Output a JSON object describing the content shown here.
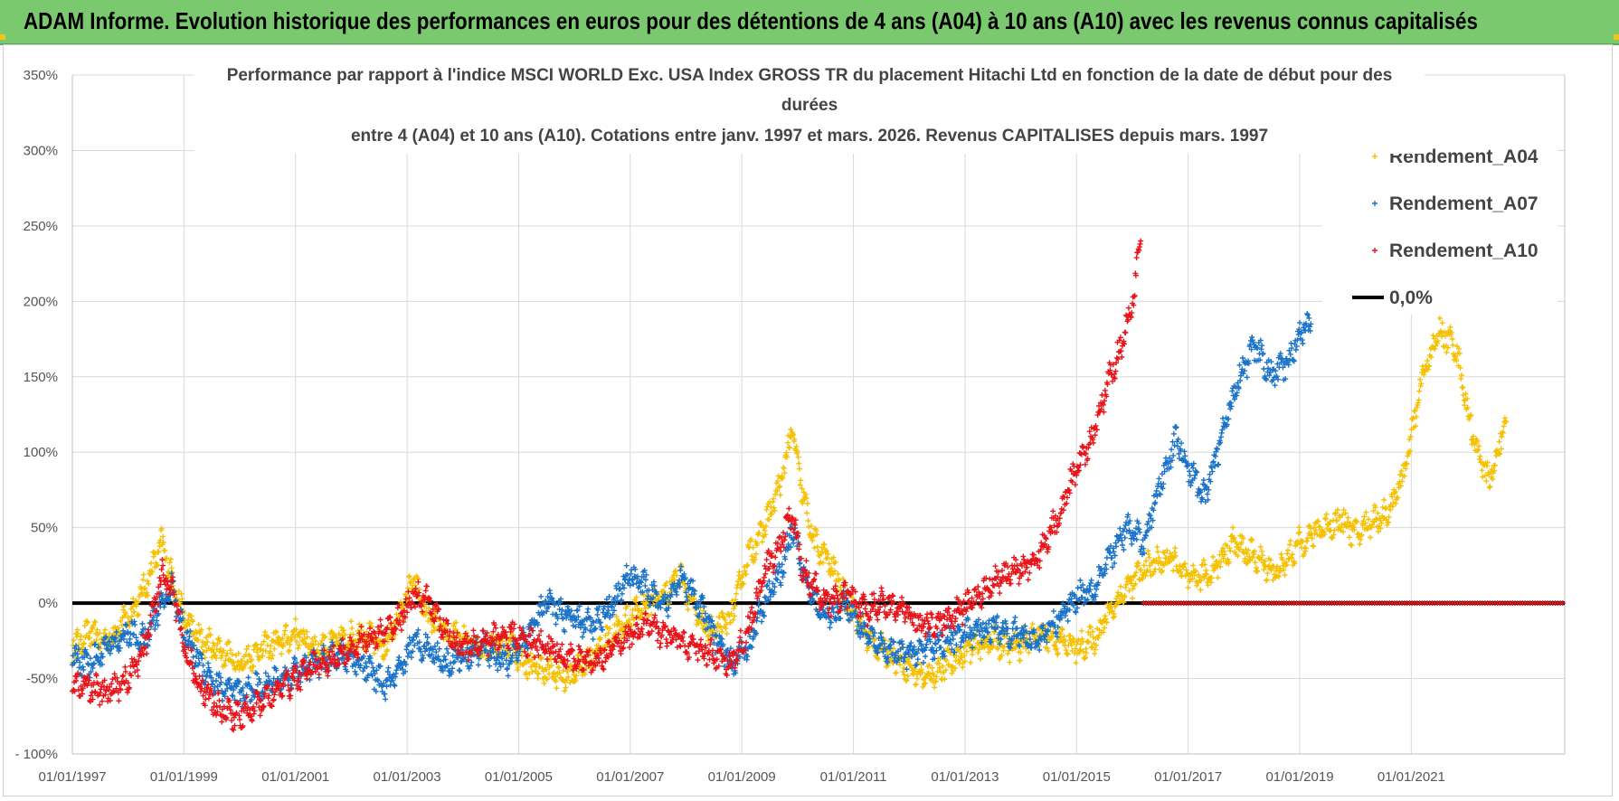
{
  "header": {
    "title": "ADAM Informe. Evolution historique des performances en euros pour des détentions de 4 ans (A04) à 10 ans (A10) avec les revenus connus capitalisés"
  },
  "colors": {
    "banner": "#7ac96f",
    "a04": "#f5c000",
    "a07": "#1a73c9",
    "a10": "#e8141a",
    "zero": "#000000",
    "grid": "#d9d9d9"
  },
  "chart_data": {
    "type": "scatter",
    "title_lines": [
      "Performance par rapport à l'indice MSCI WORLD Exc. USA Index GROSS TR  du placement Hitachi Ltd en fonction de la date de début pour des",
      "durées",
      "entre 4 (A04) et 10 ans (A10).  Cotations entre janv. 1997 et mars. 2026. Revenus CAPITALISES depuis mars. 1997"
    ],
    "x_range": [
      1997.0,
      2023.75
    ],
    "ylim": [
      -100,
      350
    ],
    "y_ticks": [
      -100,
      -50,
      0,
      50,
      100,
      150,
      200,
      250,
      300,
      350
    ],
    "y_tick_labels": [
      "- 100%",
      "-50%",
      "0%",
      "50%",
      "100%",
      "150%",
      "200%",
      "250%",
      "300%",
      "350%"
    ],
    "x_ticks": [
      1997,
      1999,
      2001,
      2003,
      2005,
      2007,
      2009,
      2011,
      2013,
      2015,
      2017,
      2019,
      2021
    ],
    "x_tick_labels": [
      "01/01/1997",
      "01/01/1999",
      "01/01/2001",
      "01/01/2003",
      "01/01/2005",
      "01/01/2007",
      "01/01/2009",
      "01/01/2011",
      "01/01/2013",
      "01/01/2015",
      "01/01/2017",
      "01/01/2019",
      "01/01/2021"
    ],
    "legend": {
      "position": "top-right",
      "entries": [
        "Rendement_A04",
        "Rendement_A07",
        "Rendement_A10",
        "0,0%"
      ]
    },
    "series": [
      {
        "name": "Rendement_A04",
        "color": "#f5c000",
        "x": [
          1997.0,
          1997.3,
          1997.6,
          1998.0,
          1998.3,
          1998.6,
          1998.8,
          1999.0,
          1999.3,
          1999.6,
          2000.0,
          2000.4,
          2000.8,
          2001.0,
          2001.4,
          2001.8,
          2002.2,
          2002.6,
          2002.9,
          2003.1,
          2003.4,
          2003.7,
          2004.0,
          2004.4,
          2004.8,
          2005.1,
          2005.5,
          2005.9,
          2006.3,
          2006.7,
          2007.0,
          2007.3,
          2007.6,
          2007.9,
          2008.2,
          2008.5,
          2008.8,
          2009.1,
          2009.4,
          2009.7,
          2009.9,
          2010.1,
          2010.3,
          2010.6,
          2010.9,
          2011.2,
          2011.5,
          2011.9,
          2012.3,
          2012.7,
          2013.1,
          2013.5,
          2013.9,
          2014.3,
          2014.7,
          2015.0,
          2015.3,
          2015.6,
          2015.9,
          2016.3,
          2016.7,
          2017.0,
          2017.4,
          2017.8,
          2018.2,
          2018.6,
          2019.0,
          2019.4,
          2019.8,
          2020.0,
          2020.3,
          2020.6,
          2020.9,
          2021.2,
          2021.5,
          2021.8,
          2022.1,
          2022.4,
          2022.7
        ],
        "y": [
          -30,
          -20,
          -25,
          -10,
          10,
          40,
          15,
          -10,
          -25,
          -30,
          -40,
          -30,
          -25,
          -20,
          -30,
          -25,
          -20,
          -30,
          -5,
          15,
          -10,
          -20,
          -25,
          -30,
          -25,
          -40,
          -45,
          -50,
          -35,
          -20,
          -10,
          0,
          5,
          20,
          -10,
          -20,
          -10,
          30,
          50,
          80,
          115,
          70,
          40,
          25,
          0,
          -20,
          -30,
          -40,
          -50,
          -40,
          -30,
          -25,
          -30,
          -20,
          -25,
          -30,
          -25,
          -5,
          10,
          25,
          30,
          15,
          20,
          40,
          30,
          20,
          40,
          50,
          55,
          45,
          55,
          60,
          90,
          150,
          180,
          170,
          110,
          80,
          120
        ]
      },
      {
        "name": "Rendement_A07",
        "color": "#1a73c9",
        "x": [
          1997.0,
          1997.3,
          1997.6,
          1998.0,
          1998.3,
          1998.6,
          1998.8,
          1999.0,
          1999.3,
          1999.6,
          2000.0,
          2000.4,
          2000.8,
          2001.0,
          2001.4,
          2001.8,
          2002.2,
          2002.6,
          2002.9,
          2003.1,
          2003.4,
          2003.7,
          2004.0,
          2004.4,
          2004.8,
          2005.1,
          2005.5,
          2005.9,
          2006.3,
          2006.7,
          2007.0,
          2007.3,
          2007.6,
          2007.9,
          2008.2,
          2008.5,
          2008.8,
          2009.1,
          2009.4,
          2009.7,
          2009.9,
          2010.1,
          2010.3,
          2010.6,
          2010.9,
          2011.2,
          2011.5,
          2011.9,
          2012.3,
          2012.7,
          2013.1,
          2013.5,
          2013.9,
          2014.3,
          2014.7,
          2015.0,
          2015.3,
          2015.6,
          2015.9,
          2016.2,
          2016.5,
          2016.8,
          2017.0,
          2017.3,
          2017.6,
          2017.9,
          2018.2,
          2018.5,
          2018.8,
          2019.0,
          2019.2
        ],
        "y": [
          -35,
          -40,
          -30,
          -20,
          -25,
          0,
          10,
          -20,
          -40,
          -55,
          -60,
          -55,
          -50,
          -45,
          -40,
          -35,
          -40,
          -55,
          -45,
          -25,
          -30,
          -40,
          -35,
          -30,
          -40,
          -25,
          0,
          -10,
          -15,
          0,
          20,
          10,
          -5,
          20,
          0,
          -20,
          -40,
          -30,
          0,
          20,
          50,
          20,
          0,
          -10,
          0,
          -20,
          -30,
          -35,
          -30,
          -25,
          -20,
          -15,
          -20,
          -25,
          -10,
          5,
          10,
          30,
          50,
          40,
          80,
          110,
          90,
          70,
          110,
          150,
          170,
          150,
          160,
          180,
          185
        ]
      },
      {
        "name": "Rendement_A10",
        "color": "#e8141a",
        "x": [
          1997.0,
          1997.3,
          1997.6,
          1998.0,
          1998.3,
          1998.6,
          1998.8,
          1999.0,
          1999.3,
          1999.6,
          2000.0,
          2000.4,
          2000.8,
          2001.0,
          2001.4,
          2001.8,
          2002.2,
          2002.6,
          2002.9,
          2003.1,
          2003.4,
          2003.7,
          2004.0,
          2004.4,
          2004.8,
          2005.1,
          2005.5,
          2005.9,
          2006.3,
          2006.7,
          2007.0,
          2007.3,
          2007.6,
          2007.9,
          2008.2,
          2008.5,
          2008.8,
          2009.1,
          2009.4,
          2009.7,
          2009.9,
          2010.1,
          2010.3,
          2010.6,
          2010.9,
          2011.2,
          2011.5,
          2011.9,
          2012.3,
          2012.7,
          2013.1,
          2013.5,
          2013.9,
          2014.3,
          2014.7,
          2015.0,
          2015.3,
          2015.6,
          2015.8,
          2016.0,
          2016.15
        ],
        "y": [
          -55,
          -55,
          -60,
          -50,
          -30,
          20,
          10,
          -30,
          -55,
          -70,
          -75,
          -65,
          -55,
          -50,
          -40,
          -35,
          -25,
          -20,
          -10,
          5,
          0,
          -20,
          -30,
          -25,
          -20,
          -25,
          -30,
          -35,
          -40,
          -30,
          -20,
          -15,
          -20,
          -25,
          -30,
          -35,
          -40,
          -20,
          20,
          40,
          60,
          20,
          10,
          0,
          5,
          -5,
          0,
          -5,
          -15,
          -10,
          0,
          15,
          20,
          30,
          60,
          90,
          110,
          150,
          170,
          200,
          240
        ]
      }
    ],
    "zero_line": {
      "name": "0,0%",
      "value": 0
    },
    "a10_zero_fill_from": 2016.2
  }
}
